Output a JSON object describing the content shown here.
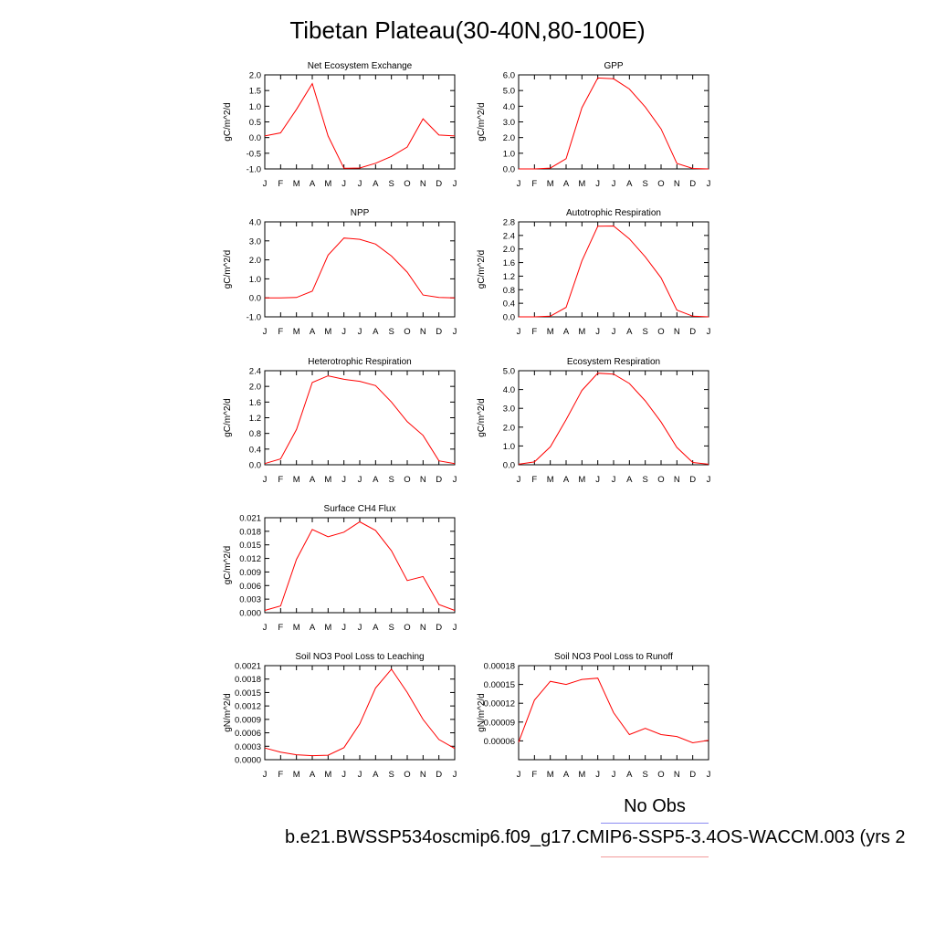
{
  "title": "Tibetan Plateau(30-40N,80-100E)",
  "legend_label": "No Obs",
  "case_name": "b.e21.BWSSP534oscmip6.f09_g17.CMIP6-SSP5-3.4OS-WACCM.003 (yrs 2",
  "colors": {
    "model_line": "#ff0000",
    "obs_legend_line": "#8c8cf2",
    "case_legend_line": "#f29a9a",
    "axes": "#000000"
  },
  "chart_data": [
    {
      "type": "line",
      "title": "Net Ecosystem Exchange",
      "ylabel": "gC/m^2/d",
      "categories": [
        "J",
        "F",
        "M",
        "A",
        "M",
        "J",
        "J",
        "A",
        "S",
        "O",
        "N",
        "D",
        "J"
      ],
      "ylim": [
        -1.0,
        2.0
      ],
      "yticks": [
        "-1.0",
        "-0.5",
        "0.0",
        "0.5",
        "1.0",
        "1.5",
        "2.0"
      ],
      "series": [
        {
          "values": [
            0.05,
            0.15,
            0.9,
            1.72,
            0.05,
            -0.98,
            -0.97,
            -0.82,
            -0.6,
            -0.3,
            0.6,
            0.08,
            0.05
          ]
        }
      ]
    },
    {
      "type": "line",
      "title": "GPP",
      "ylabel": "gC/m^2/d",
      "categories": [
        "J",
        "F",
        "M",
        "A",
        "M",
        "J",
        "J",
        "A",
        "S",
        "O",
        "N",
        "D",
        "J"
      ],
      "ylim": [
        0.0,
        6.0
      ],
      "yticks": [
        "0.0",
        "1.0",
        "2.0",
        "3.0",
        "4.0",
        "5.0",
        "6.0"
      ],
      "series": [
        {
          "values": [
            0.0,
            0.0,
            0.05,
            0.65,
            3.9,
            5.8,
            5.75,
            5.1,
            3.95,
            2.55,
            0.35,
            0.03,
            0.0
          ]
        }
      ]
    },
    {
      "type": "line",
      "title": "NPP",
      "ylabel": "gC/m^2/d",
      "categories": [
        "J",
        "F",
        "M",
        "A",
        "M",
        "J",
        "J",
        "A",
        "S",
        "O",
        "N",
        "D",
        "J"
      ],
      "ylim": [
        -1.0,
        4.0
      ],
      "yticks": [
        "-1.0",
        "0.0",
        "1.0",
        "2.0",
        "3.0",
        "4.0"
      ],
      "series": [
        {
          "values": [
            0.0,
            0.0,
            0.02,
            0.35,
            2.25,
            3.15,
            3.08,
            2.83,
            2.2,
            1.35,
            0.15,
            0.02,
            0.0
          ]
        }
      ]
    },
    {
      "type": "line",
      "title": "Autotrophic Respiration",
      "ylabel": "gC/m^2/d",
      "categories": [
        "J",
        "F",
        "M",
        "A",
        "M",
        "J",
        "J",
        "A",
        "S",
        "O",
        "N",
        "D",
        "J"
      ],
      "ylim": [
        0.0,
        2.8
      ],
      "yticks": [
        "0.0",
        "0.4",
        "0.8",
        "1.2",
        "1.6",
        "2.0",
        "2.4",
        "2.8"
      ],
      "series": [
        {
          "values": [
            0.0,
            0.0,
            0.02,
            0.28,
            1.65,
            2.67,
            2.68,
            2.3,
            1.77,
            1.15,
            0.2,
            0.02,
            0.0
          ]
        }
      ]
    },
    {
      "type": "line",
      "title": "Heterotrophic Respiration",
      "ylabel": "gC/m^2/d",
      "categories": [
        "J",
        "F",
        "M",
        "A",
        "M",
        "J",
        "J",
        "A",
        "S",
        "O",
        "N",
        "D",
        "J"
      ],
      "ylim": [
        0.0,
        2.4
      ],
      "yticks": [
        "0.0",
        "0.4",
        "0.8",
        "1.2",
        "1.6",
        "2.0",
        "2.4"
      ],
      "series": [
        {
          "values": [
            0.03,
            0.15,
            0.9,
            2.1,
            2.27,
            2.18,
            2.13,
            2.02,
            1.6,
            1.1,
            0.75,
            0.1,
            0.03
          ]
        }
      ]
    },
    {
      "type": "line",
      "title": "Ecosystem Respiration",
      "ylabel": "gC/m^2/d",
      "categories": [
        "J",
        "F",
        "M",
        "A",
        "M",
        "J",
        "J",
        "A",
        "S",
        "O",
        "N",
        "D",
        "J"
      ],
      "ylim": [
        0.0,
        5.0
      ],
      "yticks": [
        "0.0",
        "1.0",
        "2.0",
        "3.0",
        "4.0",
        "5.0"
      ],
      "series": [
        {
          "values": [
            0.03,
            0.15,
            0.95,
            2.4,
            3.95,
            4.87,
            4.82,
            4.32,
            3.4,
            2.27,
            0.92,
            0.12,
            0.03
          ]
        }
      ]
    },
    {
      "type": "line",
      "title": "Surface CH4 Flux",
      "ylabel": "gC/m^2/d",
      "categories": [
        "J",
        "F",
        "M",
        "A",
        "M",
        "J",
        "J",
        "A",
        "S",
        "O",
        "N",
        "D",
        "J"
      ],
      "ylim": [
        0.0,
        0.021
      ],
      "yticks": [
        "0.000",
        "0.003",
        "0.006",
        "0.009",
        "0.012",
        "0.015",
        "0.018",
        "0.021"
      ],
      "series": [
        {
          "values": [
            0.0005,
            0.0015,
            0.0118,
            0.0184,
            0.0168,
            0.0178,
            0.0201,
            0.0182,
            0.0137,
            0.0071,
            0.008,
            0.0018,
            0.0005
          ]
        }
      ]
    },
    {
      "type": "line",
      "title": "Soil NO3 Pool Loss to Leaching",
      "ylabel": "gN/m^2/d",
      "categories": [
        "J",
        "F",
        "M",
        "A",
        "M",
        "J",
        "J",
        "A",
        "S",
        "O",
        "N",
        "D",
        "J"
      ],
      "ylim": [
        0.0,
        0.0021
      ],
      "yticks": [
        "0.0000",
        "0.0003",
        "0.0006",
        "0.0009",
        "0.0012",
        "0.0015",
        "0.0018",
        "0.0021"
      ],
      "series": [
        {
          "values": [
            0.00026,
            0.00017,
            0.00011,
            9e-05,
            0.0001,
            0.00027,
            0.0008,
            0.0016,
            0.00202,
            0.0015,
            0.0009,
            0.00045,
            0.00025
          ]
        }
      ]
    },
    {
      "type": "line",
      "title": "Soil NO3 Pool Loss to Runoff",
      "ylabel": "gN/m^2/d",
      "categories": [
        "J",
        "F",
        "M",
        "A",
        "M",
        "J",
        "J",
        "A",
        "S",
        "O",
        "N",
        "D",
        "J"
      ],
      "ylim": [
        3e-05,
        0.00018
      ],
      "yticks": [
        "0.00006",
        "0.00009",
        "0.00012",
        "0.00015",
        "0.00018"
      ],
      "series": [
        {
          "values": [
            5.8e-05,
            0.000125,
            0.000155,
            0.00015,
            0.000158,
            0.00016,
            0.000105,
            7e-05,
            8e-05,
            7e-05,
            6.7e-05,
            5.7e-05,
            6.1e-05
          ]
        }
      ]
    }
  ]
}
